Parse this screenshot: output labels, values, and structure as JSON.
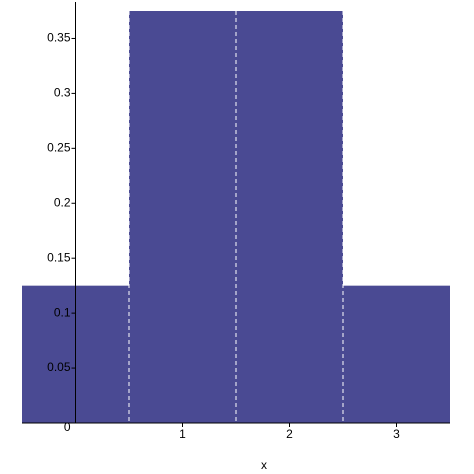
{
  "chart_data": {
    "type": "histogram",
    "bins": [
      -0.5,
      0.5,
      1.5,
      2.5,
      3.5
    ],
    "counts": [
      0.125,
      0.375,
      0.375,
      0.125
    ],
    "color": "#4a4a93",
    "xlim": [
      -0.5,
      3.5
    ],
    "ylim": [
      0,
      0.375
    ],
    "xticks": [
      1,
      2,
      3
    ],
    "yticks": [
      0,
      0.05,
      0.1,
      0.15,
      0.2,
      0.25,
      0.3,
      0.35
    ],
    "xlabel": "x"
  }
}
